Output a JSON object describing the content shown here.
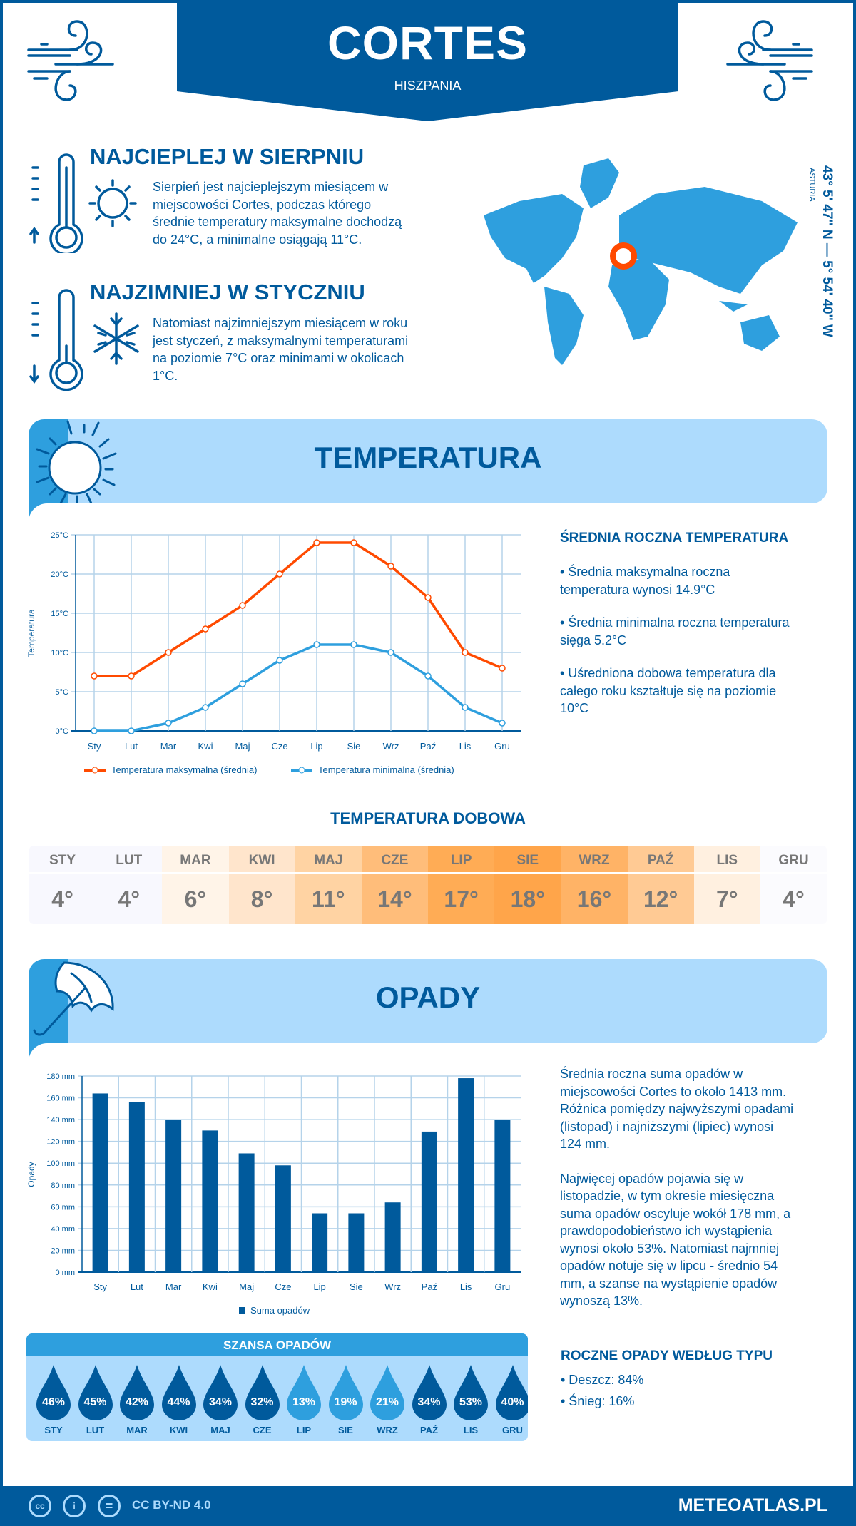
{
  "header": {
    "city": "CORTES",
    "country": "HISZPANIA"
  },
  "warmest": {
    "title": "NAJCIEPLEJ W SIERPNIU",
    "text": [
      "Sierpień jest najcieplejszym miesiącem w",
      "miejscowości Cortes, podczas którego",
      "średnie temperatury maksymalne dochodzą",
      "do 24°C, a minimalne osiągają 11°C."
    ]
  },
  "coldest": {
    "title": "NAJZIMNIEJ W STYCZNIU",
    "text": [
      "Natomiast najzimniejszym miesiącem w roku",
      "jest styczeń, z maksymalnymi temperaturami",
      "na poziomie 7°C oraz minimami w okolicach",
      "1°C."
    ]
  },
  "location": {
    "coords": "43° 5' 47'' N — 5° 54' 40'' W",
    "region": "ASTURIA",
    "marker_color": "#ff4a00"
  },
  "temperature_section": {
    "title": "TEMPERATURA",
    "summary_title": "ŚREDNIA ROCZNA TEMPERATURA",
    "bullets": [
      [
        "• Średnia maksymalna roczna",
        "temperatura wynosi 14.9°C"
      ],
      [
        "• Średnia minimalna roczna temperatura",
        "sięga 5.2°C"
      ],
      [
        "• Uśredniona dobowa temperatura dla",
        "całego roku kształtuje się na poziomie",
        "10°C"
      ]
    ]
  },
  "daily": {
    "title": "TEMPERATURA DOBOWA",
    "months": [
      "STY",
      "LUT",
      "MAR",
      "KWI",
      "MAJ",
      "CZE",
      "LIP",
      "SIE",
      "WRZ",
      "PAŹ",
      "LIS",
      "GRU"
    ],
    "values": [
      "4°",
      "4°",
      "6°",
      "8°",
      "11°",
      "14°",
      "17°",
      "18°",
      "16°",
      "12°",
      "7°",
      "4°"
    ],
    "colors": [
      "#f8f8fe",
      "#f8f8fe",
      "#fff4e8",
      "#ffe5cc",
      "#ffd3a3",
      "#ffbd7a",
      "#ffac55",
      "#ffa54a",
      "#ffb366",
      "#ffca94",
      "#fff0e0",
      "#fbfbfe"
    ]
  },
  "precip_section": {
    "title": "OPADY",
    "paragraph1": [
      "Średnia roczna suma opadów w",
      "miejscowości Cortes to około 1413 mm.",
      "Różnica pomiędzy najwyższymi opadami",
      "(listopad) i najniższymi (lipiec) wynosi",
      "124 mm."
    ],
    "paragraph2": [
      "Najwięcej opadów pojawia się w",
      "listopadzie, w tym okresie miesięczna",
      "suma opadów oscyluje wokół 178 mm, a",
      "prawdopodobieństwo ich wystąpienia",
      "wynosi około 53%. Natomiast najmniej",
      "opadów notuje się w lipcu - średnio 54",
      "mm, a szanse na wystąpienie opadów",
      "wynoszą 13%."
    ],
    "type_title": "ROCZNE OPADY WEDŁUG TYPU",
    "types": [
      "• Deszcz: 84%",
      "• Śnieg: 16%"
    ]
  },
  "chance": {
    "title": "SZANSA OPADÓW",
    "months": [
      "STY",
      "LUT",
      "MAR",
      "KWI",
      "MAJ",
      "CZE",
      "LIP",
      "SIE",
      "WRZ",
      "PAŹ",
      "LIS",
      "GRU"
    ],
    "values": [
      "46%",
      "45%",
      "42%",
      "44%",
      "34%",
      "32%",
      "13%",
      "19%",
      "21%",
      "34%",
      "53%",
      "40%"
    ],
    "percent": [
      46,
      45,
      42,
      44,
      34,
      32,
      13,
      19,
      21,
      34,
      53,
      40
    ]
  },
  "footer": {
    "license": "CC BY-ND 4.0",
    "site": "METEOATLAS.PL",
    "cc": "cc",
    "eq": "="
  },
  "chart_data": [
    {
      "type": "line",
      "title": "",
      "ylabel": "Temperatura",
      "xlabel": "",
      "categories": [
        "Sty",
        "Lut",
        "Mar",
        "Kwi",
        "Maj",
        "Cze",
        "Lip",
        "Sie",
        "Wrz",
        "Paź",
        "Lis",
        "Gru"
      ],
      "yticks": [
        "0°C",
        "5°C",
        "10°C",
        "15°C",
        "20°C",
        "25°C"
      ],
      "ylim": [
        0,
        25
      ],
      "series": [
        {
          "name": "Temperatura maksymalna (średnia)",
          "color": "#ff4a00",
          "values": [
            7,
            7,
            10,
            13,
            16,
            20,
            24,
            24,
            21,
            17,
            10,
            8
          ]
        },
        {
          "name": "Temperatura minimalna (średnia)",
          "color": "#2e9fde",
          "values": [
            0,
            0,
            1,
            3,
            6,
            9,
            11,
            11,
            10,
            7,
            3,
            1
          ]
        }
      ],
      "legend": "bottom"
    },
    {
      "type": "bar",
      "title": "",
      "ylabel": "Opady",
      "xlabel": "",
      "categories": [
        "Sty",
        "Lut",
        "Mar",
        "Kwi",
        "Maj",
        "Cze",
        "Lip",
        "Sie",
        "Wrz",
        "Paź",
        "Lis",
        "Gru"
      ],
      "yticks": [
        "0 mm",
        "20 mm",
        "40 mm",
        "60 mm",
        "80 mm",
        "100 mm",
        "120 mm",
        "140 mm",
        "160 mm",
        "180 mm"
      ],
      "ylim": [
        0,
        180
      ],
      "series": [
        {
          "name": "Suma opadów",
          "color": "#005a9c",
          "values": [
            164,
            156,
            140,
            130,
            109,
            98,
            54,
            54,
            64,
            129,
            178,
            140
          ]
        }
      ],
      "legend": "bottom"
    }
  ]
}
